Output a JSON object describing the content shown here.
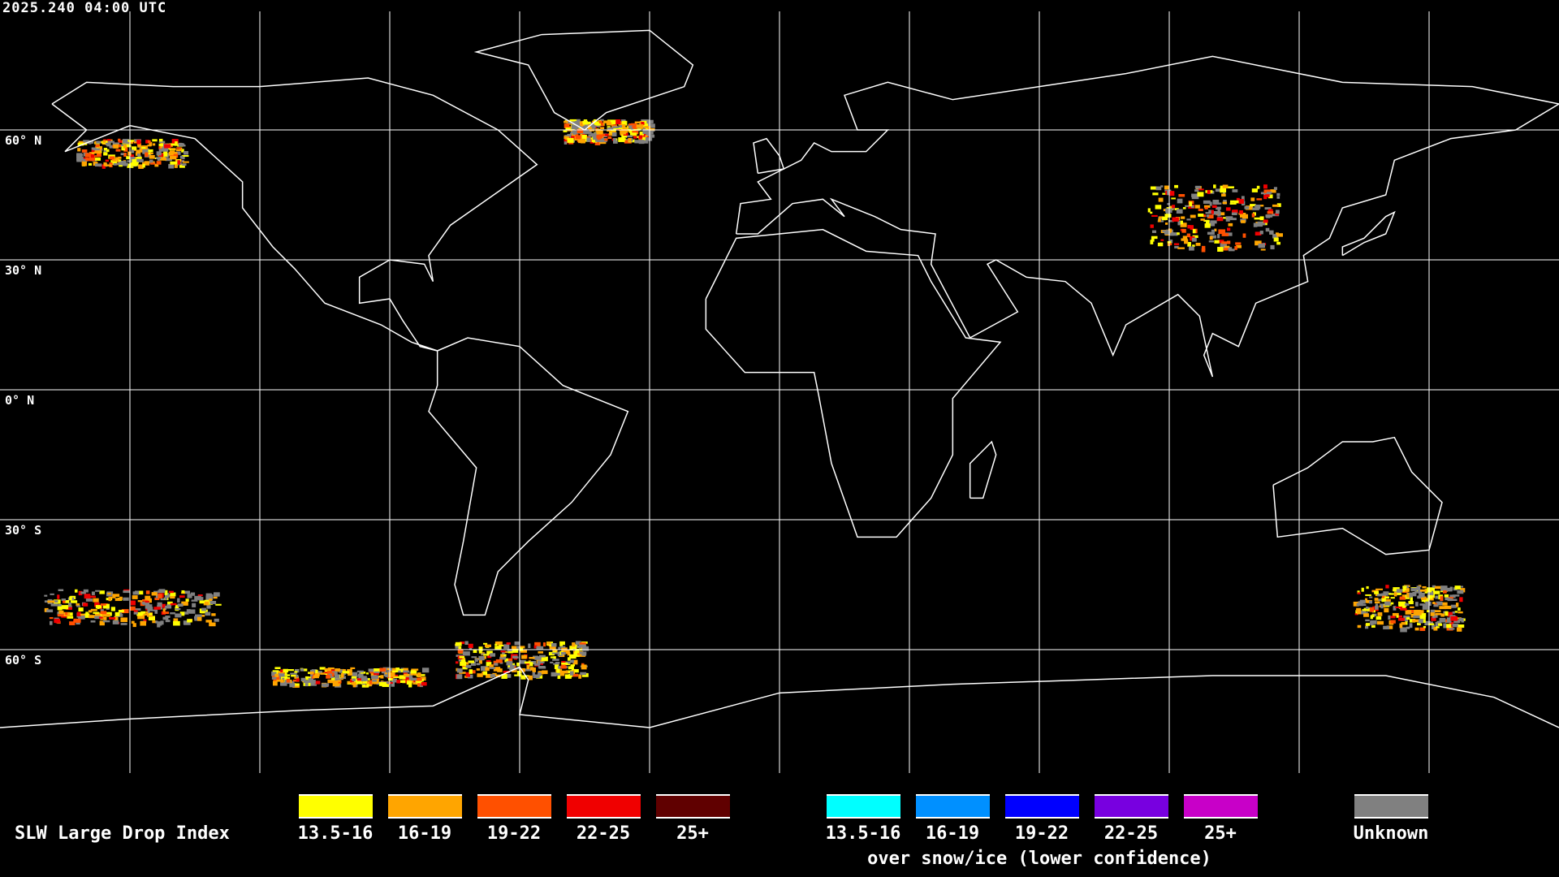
{
  "title": "2025.240 04:00 UTC",
  "lat_labels": [
    "60° N",
    "30° N",
    "0° N",
    "30° S",
    "60° S"
  ],
  "legend": {
    "title": "SLW Large Drop Index",
    "normal": [
      {
        "label": "13.5-16",
        "color": "#ffff00"
      },
      {
        "label": "16-19",
        "color": "#ffa500"
      },
      {
        "label": "19-22",
        "color": "#ff5000"
      },
      {
        "label": "22-25",
        "color": "#f00000"
      },
      {
        "label": "25+",
        "color": "#600000"
      }
    ],
    "snow_ice": [
      {
        "label": "13.5-16",
        "color": "#00ffff"
      },
      {
        "label": "16-19",
        "color": "#0090ff"
      },
      {
        "label": "19-22",
        "color": "#0000ff"
      },
      {
        "label": "22-25",
        "color": "#7800e0"
      },
      {
        "label": "25+",
        "color": "#c800c8"
      }
    ],
    "snow_ice_caption": "over snow/ice (lower confidence)",
    "unknown": {
      "label": "Unknown",
      "color": "#808080"
    }
  },
  "map": {
    "projection": "equirectangular",
    "grid_spacing_deg": 30,
    "coastline_color": "#ffffff",
    "grid_color": "#ffffff"
  }
}
